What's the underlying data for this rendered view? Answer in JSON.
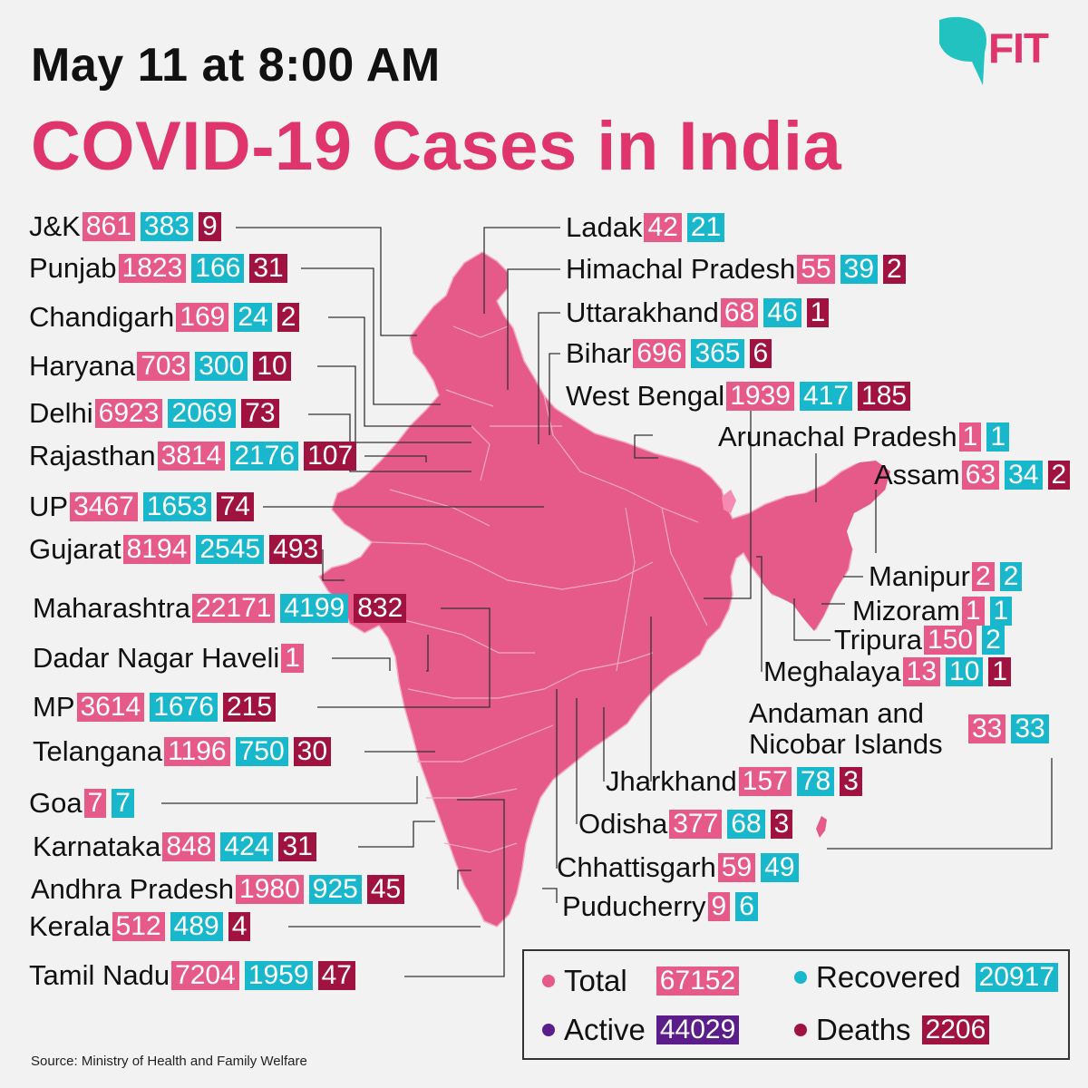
{
  "header": {
    "date": "May 11 at 8:00 AM",
    "title": "COVID-19 Cases in India",
    "brand": "FIT"
  },
  "colors": {
    "total": "#e65a8a",
    "recovered": "#19b7cc",
    "deaths": "#a01340",
    "active": "#5a1d8a",
    "map_fill": "#e65a8a",
    "title": "#e0356c"
  },
  "states_left": [
    {
      "name": "J&K",
      "total": "861",
      "recovered": "383",
      "deaths": "9"
    },
    {
      "name": "Punjab",
      "total": "1823",
      "recovered": "166",
      "deaths": "31"
    },
    {
      "name": "Chandigarh",
      "total": "169",
      "recovered": "24",
      "deaths": "2"
    },
    {
      "name": "Haryana",
      "total": "703",
      "recovered": "300",
      "deaths": "10"
    },
    {
      "name": "Delhi",
      "total": "6923",
      "recovered": "2069",
      "deaths": "73"
    },
    {
      "name": "Rajasthan",
      "total": "3814",
      "recovered": "2176",
      "deaths": "107"
    },
    {
      "name": "UP",
      "total": "3467",
      "recovered": "1653",
      "deaths": "74"
    },
    {
      "name": "Gujarat",
      "total": "8194",
      "recovered": "2545",
      "deaths": "493"
    },
    {
      "name": "Maharashtra",
      "total": "22171",
      "recovered": "4199",
      "deaths": "832"
    },
    {
      "name": "Dadar Nagar Haveli",
      "total": "1",
      "recovered": "",
      "deaths": ""
    },
    {
      "name": "MP",
      "total": "3614",
      "recovered": "1676",
      "deaths": "215"
    },
    {
      "name": "Telangana",
      "total": "1196",
      "recovered": "750",
      "deaths": "30"
    },
    {
      "name": "Goa",
      "total": "7",
      "recovered": "7",
      "deaths": ""
    },
    {
      "name": "Karnataka",
      "total": "848",
      "recovered": "424",
      "deaths": "31"
    },
    {
      "name": "Andhra Pradesh",
      "total": "1980",
      "recovered": "925",
      "deaths": "45"
    },
    {
      "name": "Kerala",
      "total": "512",
      "recovered": "489",
      "deaths": "4"
    },
    {
      "name": "Tamil Nadu",
      "total": "7204",
      "recovered": "1959",
      "deaths": "47"
    }
  ],
  "states_right": [
    {
      "name": "Ladak",
      "total": "42",
      "recovered": "21",
      "deaths": ""
    },
    {
      "name": "Himachal Pradesh",
      "total": "55",
      "recovered": "39",
      "deaths": "2"
    },
    {
      "name": "Uttarakhand",
      "total": "68",
      "recovered": "46",
      "deaths": "1"
    },
    {
      "name": "Bihar",
      "total": "696",
      "recovered": "365",
      "deaths": "6"
    },
    {
      "name": "West Bengal",
      "total": "1939",
      "recovered": "417",
      "deaths": "185"
    },
    {
      "name": "Arunachal Pradesh",
      "total": "1",
      "recovered": "1",
      "deaths": ""
    },
    {
      "name": "Assam",
      "total": "63",
      "recovered": "34",
      "deaths": "2"
    },
    {
      "name": "Manipur",
      "total": "2",
      "recovered": "2",
      "deaths": ""
    },
    {
      "name": "Mizoram",
      "total": "1",
      "recovered": "1",
      "deaths": ""
    },
    {
      "name": "Tripura",
      "total": "150",
      "recovered": "2",
      "deaths": ""
    },
    {
      "name": "Meghalaya",
      "total": "13",
      "recovered": "10",
      "deaths": "1"
    },
    {
      "name": "Andaman and Nicobar Islands",
      "total": "33",
      "recovered": "33",
      "deaths": ""
    },
    {
      "name": "Jharkhand",
      "total": "157",
      "recovered": "78",
      "deaths": "3"
    },
    {
      "name": "Odisha",
      "total": "377",
      "recovered": "68",
      "deaths": "3"
    },
    {
      "name": "Chhattisgarh",
      "total": "59",
      "recovered": "49",
      "deaths": ""
    },
    {
      "name": "Puducherry",
      "total": "9",
      "recovered": "6",
      "deaths": ""
    }
  ],
  "legend": {
    "total_label": "Total",
    "total_value": "67152",
    "recovered_label": "Recovered",
    "recovered_value": "20917",
    "active_label": "Active",
    "active_value": "44029",
    "deaths_label": "Deaths",
    "deaths_value": "2206"
  },
  "source": "Source: Ministry of Health and Family Welfare"
}
